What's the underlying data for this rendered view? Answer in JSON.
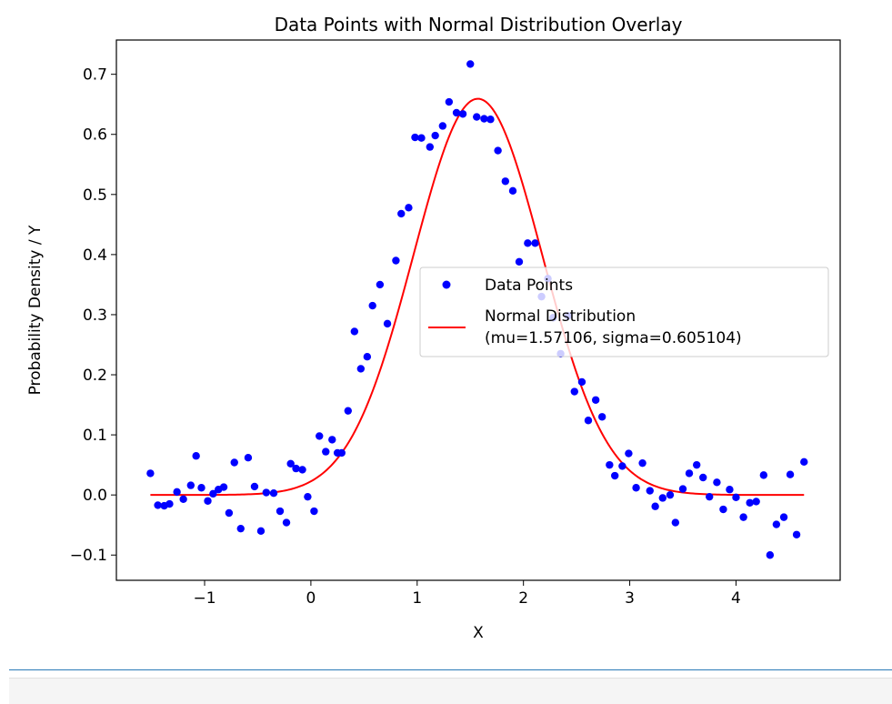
{
  "chart_data": {
    "type": "scatter",
    "title": "Data Points with Normal Distribution Overlay",
    "xlabel": "X",
    "ylabel": "Probability Density / Y",
    "xlim": [
      -1.83,
      4.98
    ],
    "ylim": [
      -0.142,
      0.757
    ],
    "xticks": [
      -1,
      0,
      1,
      2,
      3,
      4
    ],
    "xtick_labels": [
      "−1",
      "0",
      "1",
      "2",
      "3",
      "4"
    ],
    "yticks": [
      -0.1,
      0.0,
      0.1,
      0.2,
      0.3,
      0.4,
      0.5,
      0.6,
      0.7
    ],
    "ytick_labels": [
      "−0.1",
      "0.0",
      "0.1",
      "0.2",
      "0.3",
      "0.4",
      "0.5",
      "0.6",
      "0.7"
    ],
    "grid": false,
    "legend_position": "center-right",
    "series": [
      {
        "name": "Data Points",
        "type": "scatter",
        "color": "#0000ff",
        "x": [
          -1.51,
          -1.44,
          -1.38,
          -1.33,
          -1.26,
          -1.2,
          -1.13,
          -1.08,
          -1.03,
          -0.97,
          -0.92,
          -0.87,
          -0.82,
          -0.77,
          -0.72,
          -0.66,
          -0.59,
          -0.53,
          -0.47,
          -0.42,
          -0.35,
          -0.29,
          -0.23,
          -0.19,
          -0.14,
          -0.08,
          -0.03,
          0.03,
          0.08,
          0.14,
          0.2,
          0.25,
          0.29,
          0.35,
          0.41,
          0.47,
          0.53,
          0.58,
          0.65,
          0.72,
          0.8,
          0.85,
          0.92,
          0.98,
          1.04,
          1.12,
          1.17,
          1.24,
          1.3,
          1.37,
          1.43,
          1.5,
          1.56,
          1.63,
          1.69,
          1.76,
          1.83,
          1.9,
          1.96,
          2.04,
          2.11,
          2.17,
          2.23,
          2.28,
          2.35,
          2.42,
          2.48,
          2.55,
          2.61,
          2.68,
          2.74,
          2.81,
          2.86,
          2.93,
          2.99,
          3.06,
          3.12,
          3.19,
          3.24,
          3.31,
          3.38,
          3.43,
          3.5,
          3.56,
          3.63,
          3.69,
          3.75,
          3.82,
          3.88,
          3.94,
          4.0,
          4.07,
          4.13,
          4.19,
          4.26,
          4.32,
          4.38,
          4.45,
          4.51,
          4.57,
          4.64
        ],
        "y": [
          0.036,
          -0.017,
          -0.018,
          -0.015,
          0.005,
          -0.007,
          0.016,
          0.065,
          0.012,
          -0.01,
          0.002,
          0.009,
          0.013,
          -0.03,
          0.054,
          -0.056,
          0.062,
          0.014,
          -0.06,
          0.004,
          0.003,
          -0.027,
          -0.046,
          0.052,
          0.044,
          0.042,
          -0.003,
          -0.027,
          0.098,
          0.072,
          0.092,
          0.07,
          0.07,
          0.14,
          0.272,
          0.21,
          0.23,
          0.315,
          0.35,
          0.285,
          0.39,
          0.468,
          0.478,
          0.595,
          0.594,
          0.579,
          0.598,
          0.614,
          0.654,
          0.636,
          0.634,
          0.717,
          0.629,
          0.626,
          0.625,
          0.573,
          0.522,
          0.506,
          0.388,
          0.419,
          0.419,
          0.33,
          0.36,
          0.295,
          0.235,
          0.298,
          0.172,
          0.188,
          0.124,
          0.158,
          0.13,
          0.05,
          0.032,
          0.048,
          0.069,
          0.012,
          0.053,
          0.007,
          -0.019,
          -0.005,
          0.0,
          -0.046,
          0.01,
          0.036,
          0.05,
          0.029,
          -0.003,
          0.021,
          -0.024,
          0.009,
          -0.004,
          -0.037,
          -0.013,
          -0.011,
          0.033,
          -0.1,
          -0.049,
          -0.037,
          0.034,
          -0.066,
          0.055
        ]
      },
      {
        "name": "Normal Distribution\n(mu=1.57106, sigma=0.605104)",
        "label_line1": "Normal Distribution",
        "label_line2": "(mu=1.57106, sigma=0.605104)",
        "type": "line",
        "color": "#ff0000",
        "mu": 1.57106,
        "sigma": 0.605104,
        "x_range": [
          -1.51,
          4.64
        ]
      }
    ]
  }
}
